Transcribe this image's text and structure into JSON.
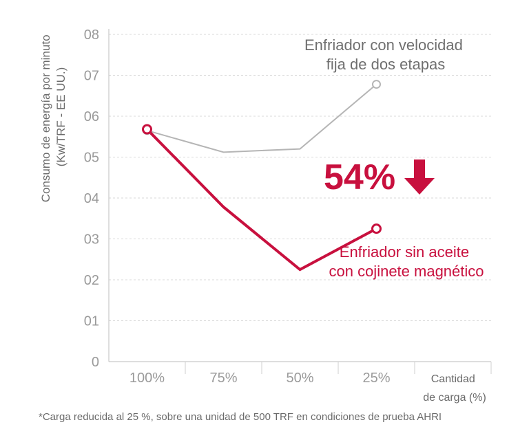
{
  "chart_data": {
    "type": "line",
    "categories": [
      "100%",
      "75%",
      "50%",
      "25%"
    ],
    "yticks": [
      "0",
      "01",
      "02",
      "03",
      "04",
      "05",
      "06",
      "07",
      "08"
    ],
    "ylim": [
      0,
      8
    ],
    "ylabel_lines": [
      "Consumo de energía por minuto",
      "(Kw/TRF - EE UU.)"
    ],
    "xlabel_lines": [
      "Cantidad",
      "de carga (%)"
    ],
    "series": [
      {
        "name": "Enfriador con velocidad fija de dos etapas",
        "label_lines": [
          "Enfriador con velocidad",
          "fija de dos etapas"
        ],
        "color": "#b5b5b5",
        "values": [
          5.65,
          5.12,
          5.2,
          6.78
        ]
      },
      {
        "name": "Enfriador sin aceite con cojinete magnético",
        "label_lines": [
          "Enfriador sin aceite",
          "con cojinete magnético"
        ],
        "color": "#c8103e",
        "values": [
          5.68,
          3.78,
          2.25,
          3.25
        ]
      }
    ],
    "annotation": {
      "text": "54%",
      "color": "#c8103e"
    }
  },
  "footnote": "*Carga reducida al 25 %, sobre una unidad de 500 TRF en condiciones de prueba AHRI"
}
